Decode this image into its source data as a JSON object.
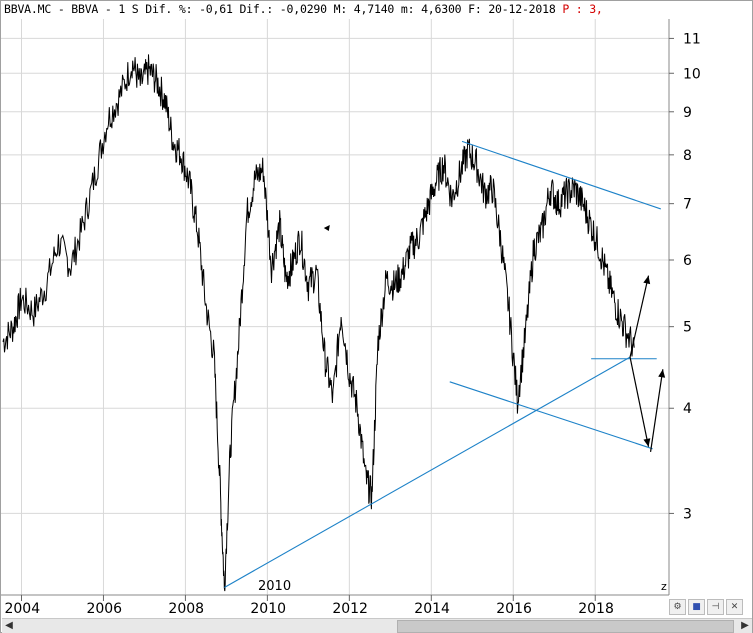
{
  "header": {
    "symbol": "BBVA.MC",
    "name": "BBVA",
    "period": "1 S",
    "dif_pct_label": "Dif. %:",
    "dif_pct": "-0,61",
    "dif_label": "Dif.:",
    "dif": "-0,0290",
    "max_label": "M:",
    "max": "4,7140",
    "min_label": "m:",
    "min": "4,6300",
    "date_label": "F:",
    "date": "20-12-2018",
    "p_label": "P : 3,"
  },
  "colors": {
    "price_line": "#000000",
    "trendline": "#1d82c8",
    "arrow": "#000000",
    "grid": "#d8d8d8",
    "header_red": "#d40000"
  },
  "toolbar": {
    "icons": [
      "settings-icon",
      "save-icon",
      "pin-icon",
      "close-icon"
    ]
  },
  "chart_data": {
    "type": "line",
    "scale": "log",
    "ylim": [
      2.4,
      11.6
    ],
    "xlim": [
      2003.5,
      2019.8
    ],
    "y_ticks": [
      3,
      4,
      5,
      6,
      7,
      8,
      9,
      10,
      11
    ],
    "x_ticks": [
      2004,
      2006,
      2008,
      2010,
      2012,
      2014,
      2016,
      2018
    ],
    "x_tick_labels": [
      "2004",
      "2006",
      "2008",
      "2010",
      "2012",
      "2014",
      "2016",
      "2018"
    ],
    "axis_annotation": "2010",
    "series": [
      {
        "x": [
          2003.55,
          2003.8,
          2004.0,
          2004.3,
          2004.6,
          2004.9,
          2005.2,
          2005.5,
          2005.8,
          2006.1,
          2006.4,
          2006.7,
          2006.9,
          2007.1,
          2007.3,
          2007.5,
          2007.7,
          2007.9,
          2008.1,
          2008.3,
          2008.5,
          2008.7,
          2008.85,
          2008.95,
          2009.1,
          2009.3,
          2009.5,
          2009.7,
          2009.9,
          2010.1,
          2010.3,
          2010.45,
          2010.6,
          2010.8,
          2011.0,
          2011.2,
          2011.4,
          2011.6,
          2011.8,
          2012.0,
          2012.2,
          2012.4,
          2012.55,
          2012.7,
          2012.9,
          2013.1,
          2013.3,
          2013.5,
          2013.7,
          2013.9,
          2014.1,
          2014.3,
          2014.5,
          2014.7,
          2014.9,
          2015.1,
          2015.3,
          2015.5,
          2015.7,
          2015.9,
          2016.1,
          2016.3,
          2016.5,
          2016.7,
          2016.9,
          2017.1,
          2017.3,
          2017.5,
          2017.7,
          2017.9,
          2018.1,
          2018.3,
          2018.5,
          2018.7,
          2018.95
        ],
        "values": [
          4.8,
          5.0,
          5.4,
          5.2,
          5.6,
          6.3,
          5.9,
          6.6,
          7.6,
          8.8,
          9.4,
          10.3,
          9.7,
          10.1,
          9.8,
          9.3,
          8.3,
          8.0,
          7.4,
          6.5,
          5.3,
          4.6,
          3.2,
          2.45,
          3.6,
          4.8,
          6.8,
          7.5,
          7.7,
          5.9,
          6.6,
          5.7,
          5.9,
          6.4,
          5.6,
          5.8,
          4.6,
          4.1,
          5.2,
          4.4,
          4.0,
          3.3,
          3.15,
          4.8,
          5.7,
          5.6,
          5.8,
          6.2,
          6.4,
          6.9,
          7.4,
          7.8,
          7.1,
          7.6,
          8.1,
          7.8,
          7.2,
          7.3,
          6.3,
          5.2,
          4.1,
          4.9,
          6.2,
          6.5,
          7.3,
          7.0,
          7.2,
          7.3,
          7.0,
          6.6,
          6.2,
          5.7,
          5.3,
          5.0,
          4.72
        ]
      }
    ],
    "trendlines": [
      {
        "x": [
          2008.95,
          2018.85
        ],
        "y": [
          2.45,
          4.6
        ]
      },
      {
        "x": [
          2014.75,
          2019.6
        ],
        "y": [
          8.3,
          6.9
        ]
      },
      {
        "x": [
          2014.45,
          2019.4
        ],
        "y": [
          4.3,
          3.58
        ]
      },
      {
        "x": [
          2017.9,
          2019.5
        ],
        "y": [
          4.58,
          4.58
        ]
      }
    ],
    "arrows": [
      {
        "from": [
          2018.85,
          4.6
        ],
        "to": [
          2019.3,
          5.75
        ]
      },
      {
        "from": [
          2018.85,
          4.6
        ],
        "to": [
          2019.3,
          3.6
        ]
      },
      {
        "from": [
          2019.35,
          3.55
        ],
        "to": [
          2019.65,
          4.45
        ]
      }
    ],
    "marker": {
      "x": 2011.45,
      "y": 6.55
    }
  }
}
